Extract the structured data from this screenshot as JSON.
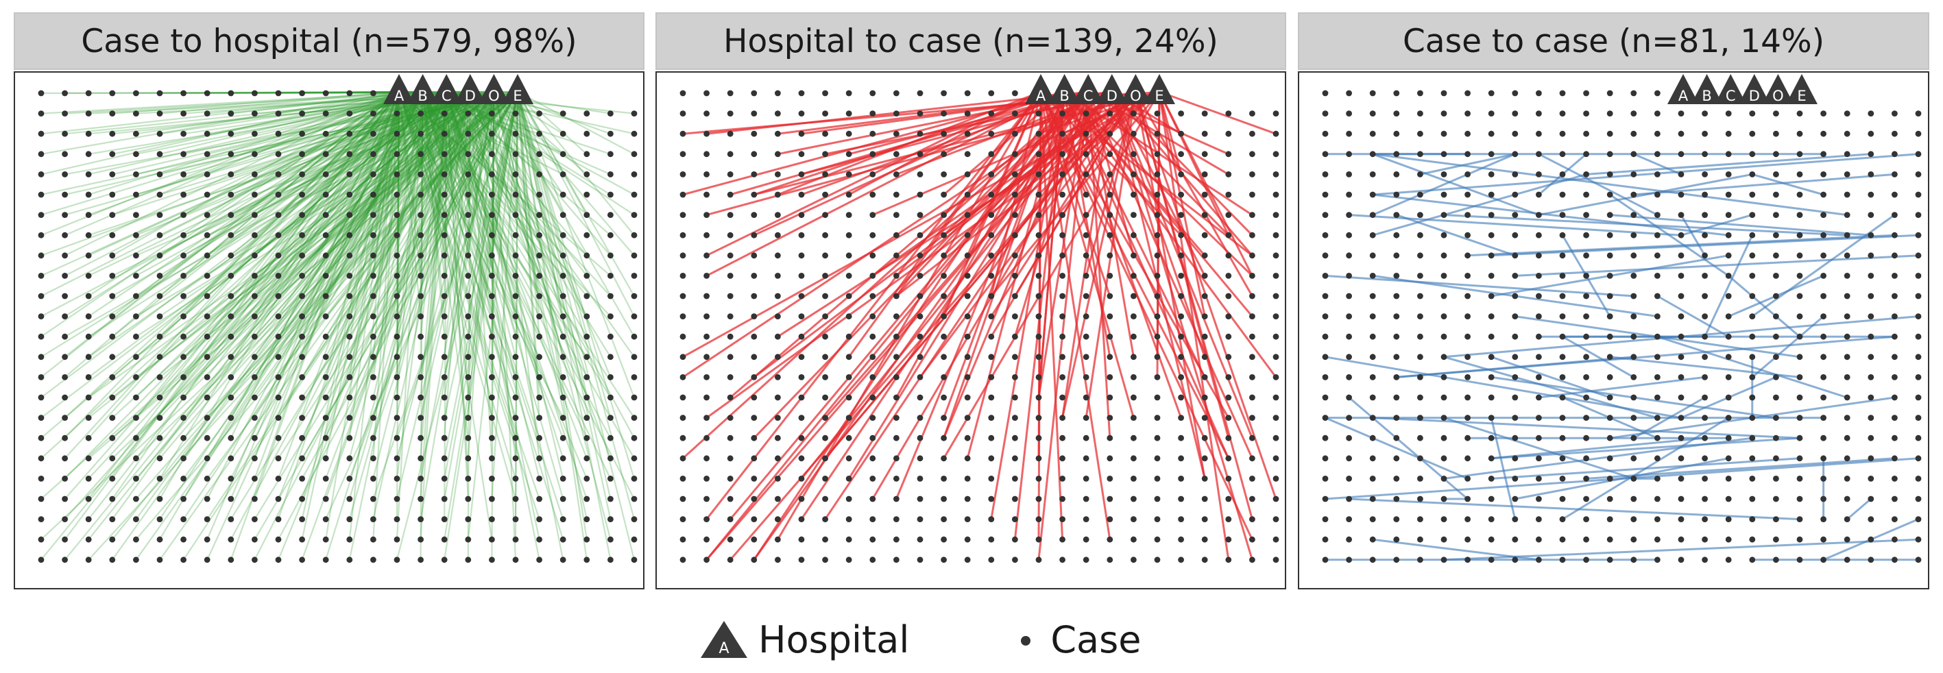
{
  "panels": [
    {
      "id": "case_to_hospital",
      "title": "Case to hospital (n=579, 98%)",
      "line_color": "#2e9a2e",
      "kind": "case_to_hospital"
    },
    {
      "id": "hospital_to_case",
      "title": "Hospital to case (n=139, 24%)",
      "line_color": "#e62a2e",
      "kind": "hospital_to_case"
    },
    {
      "id": "case_to_case",
      "title": "Case to case (n=81, 14%)",
      "line_color": "#3d7ab8",
      "kind": "case_to_case"
    }
  ],
  "hospitals": [
    "A",
    "B",
    "C",
    "D",
    "O",
    "E"
  ],
  "legend": {
    "hospital_label": "Hospital",
    "hospital_glyph": "A",
    "case_label": "Case"
  },
  "colors": {
    "point": "#333333",
    "hospital_fill": "#3a3a3a",
    "hospital_text": "#ffffff"
  }
}
